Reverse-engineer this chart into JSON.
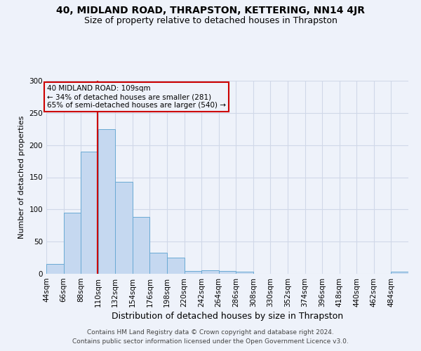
{
  "title": "40, MIDLAND ROAD, THRAPSTON, KETTERING, NN14 4JR",
  "subtitle": "Size of property relative to detached houses in Thrapston",
  "xlabel": "Distribution of detached houses by size in Thrapston",
  "ylabel": "Number of detached properties",
  "bin_edges": [
    44,
    66,
    88,
    110,
    132,
    154,
    176,
    198,
    220,
    242,
    264,
    286,
    308,
    330,
    352,
    374,
    396,
    418,
    440,
    462,
    484,
    506
  ],
  "bar_heights": [
    15,
    95,
    190,
    225,
    143,
    88,
    33,
    25,
    4,
    6,
    4,
    3,
    0,
    0,
    0,
    0,
    0,
    0,
    0,
    0,
    3
  ],
  "bar_color": "#c5d8f0",
  "bar_edge_color": "#6aaad4",
  "grid_color": "#d0d8e8",
  "background_color": "#eef2fa",
  "property_size": 109,
  "vline_color": "#cc0000",
  "annotation_line1": "40 MIDLAND ROAD: 109sqm",
  "annotation_line2": "← 34% of detached houses are smaller (281)",
  "annotation_line3": "65% of semi-detached houses are larger (540) →",
  "annotation_box_color": "#cc0000",
  "ylim": [
    0,
    300
  ],
  "yticks": [
    0,
    50,
    100,
    150,
    200,
    250,
    300
  ],
  "footer_line1": "Contains HM Land Registry data © Crown copyright and database right 2024.",
  "footer_line2": "Contains public sector information licensed under the Open Government Licence v3.0.",
  "title_fontsize": 10,
  "subtitle_fontsize": 9,
  "xlabel_fontsize": 9,
  "ylabel_fontsize": 8,
  "tick_fontsize": 7.5,
  "footer_fontsize": 6.5
}
